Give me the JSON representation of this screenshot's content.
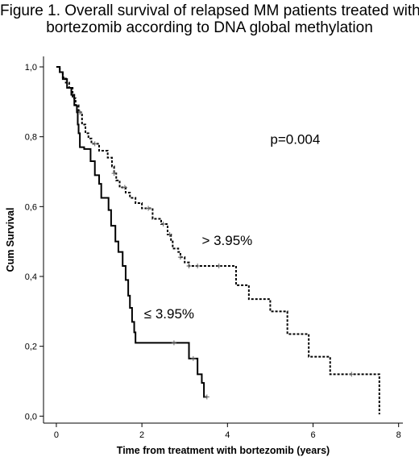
{
  "chart_data": {
    "type": "line",
    "subtype": "kaplan-meier step",
    "title_lines": [
      "Figure 1. Overall survival of relapsed MM patients treated with",
      "bortezomib according to DNA global methylation"
    ],
    "xlabel": "Time from treatment with bortezomib (years)",
    "ylabel": "Cum Survival",
    "xlim": [
      -0.3,
      8.1
    ],
    "ylim": [
      -0.02,
      1.03
    ],
    "x_ticks": [
      0,
      2,
      4,
      6,
      8
    ],
    "x_tick_labels": [
      "0",
      "2",
      "4",
      "6",
      "8"
    ],
    "y_ticks": [
      0.0,
      0.2,
      0.4,
      0.6,
      0.8,
      1.0
    ],
    "y_tick_labels": [
      "0,0",
      "0,2",
      "0,4",
      "0,6",
      "0,8",
      "1,0"
    ],
    "grid": false,
    "legend": "none",
    "annotations": [
      {
        "text": "p=0.004",
        "x": 5.0,
        "y": 0.78
      },
      {
        "text": "> 3.95%",
        "x": 3.4,
        "y": 0.49
      },
      {
        "text": "≤ 3.95%",
        "x": 2.05,
        "y": 0.28
      }
    ],
    "series": [
      {
        "style": "dashed",
        "color": "#000000",
        "steps": [
          [
            0.0,
            1.0
          ],
          [
            0.08,
            0.985
          ],
          [
            0.15,
            0.97
          ],
          [
            0.22,
            0.955
          ],
          [
            0.3,
            0.94
          ],
          [
            0.38,
            0.91
          ],
          [
            0.45,
            0.89
          ],
          [
            0.52,
            0.87
          ],
          [
            0.6,
            0.835
          ],
          [
            0.68,
            0.81
          ],
          [
            0.75,
            0.795
          ],
          [
            0.82,
            0.78
          ],
          [
            1.0,
            0.76
          ],
          [
            1.2,
            0.74
          ],
          [
            1.3,
            0.715
          ],
          [
            1.35,
            0.695
          ],
          [
            1.4,
            0.675
          ],
          [
            1.48,
            0.655
          ],
          [
            1.62,
            0.64
          ],
          [
            1.72,
            0.625
          ],
          [
            1.85,
            0.61
          ],
          [
            2.0,
            0.595
          ],
          [
            2.25,
            0.565
          ],
          [
            2.45,
            0.55
          ],
          [
            2.6,
            0.52
          ],
          [
            2.68,
            0.5
          ],
          [
            2.72,
            0.48
          ],
          [
            2.85,
            0.47
          ],
          [
            2.9,
            0.455
          ],
          [
            3.0,
            0.44
          ],
          [
            3.1,
            0.43
          ],
          [
            3.3,
            0.43
          ],
          [
            3.7,
            0.43
          ],
          [
            4.2,
            0.375
          ],
          [
            4.5,
            0.335
          ],
          [
            5.0,
            0.3
          ],
          [
            5.4,
            0.235
          ],
          [
            5.9,
            0.17
          ],
          [
            6.4,
            0.12
          ],
          [
            7.55,
            0.005
          ]
        ],
        "censor_x": [
          0.55,
          0.9,
          1.35,
          1.6,
          2.15,
          2.5,
          2.65,
          2.9,
          3.1,
          3.3,
          3.8,
          6.9
        ]
      },
      {
        "style": "solid",
        "color": "#000000",
        "steps": [
          [
            0.0,
            1.0
          ],
          [
            0.08,
            0.985
          ],
          [
            0.15,
            0.965
          ],
          [
            0.25,
            0.94
          ],
          [
            0.35,
            0.92
          ],
          [
            0.42,
            0.89
          ],
          [
            0.48,
            0.87
          ],
          [
            0.5,
            0.835
          ],
          [
            0.52,
            0.81
          ],
          [
            0.55,
            0.77
          ],
          [
            0.65,
            0.765
          ],
          [
            0.8,
            0.73
          ],
          [
            0.9,
            0.69
          ],
          [
            1.0,
            0.665
          ],
          [
            1.05,
            0.625
          ],
          [
            1.22,
            0.59
          ],
          [
            1.28,
            0.545
          ],
          [
            1.38,
            0.5
          ],
          [
            1.45,
            0.47
          ],
          [
            1.55,
            0.43
          ],
          [
            1.62,
            0.39
          ],
          [
            1.68,
            0.345
          ],
          [
            1.72,
            0.31
          ],
          [
            1.77,
            0.27
          ],
          [
            1.82,
            0.24
          ],
          [
            1.85,
            0.21
          ],
          [
            3.1,
            0.165
          ],
          [
            3.3,
            0.12
          ],
          [
            3.4,
            0.095
          ],
          [
            3.45,
            0.055
          ]
        ],
        "end_x": 3.52,
        "censor_x": [
          2.75,
          3.2,
          3.52
        ]
      }
    ]
  }
}
